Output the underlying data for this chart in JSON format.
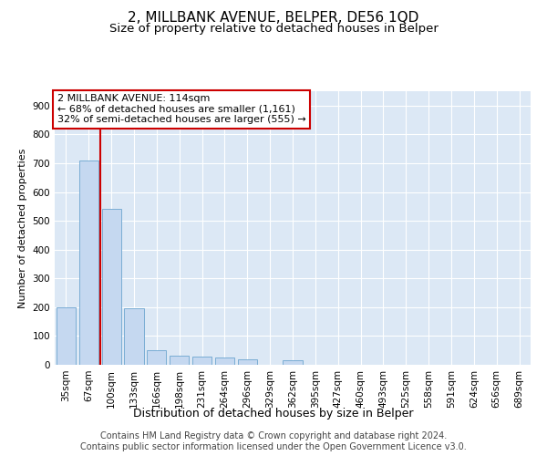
{
  "title": "2, MILLBANK AVENUE, BELPER, DE56 1QD",
  "subtitle": "Size of property relative to detached houses in Belper",
  "xlabel": "Distribution of detached houses by size in Belper",
  "ylabel": "Number of detached properties",
  "categories": [
    "35sqm",
    "67sqm",
    "100sqm",
    "133sqm",
    "166sqm",
    "198sqm",
    "231sqm",
    "264sqm",
    "296sqm",
    "329sqm",
    "362sqm",
    "395sqm",
    "427sqm",
    "460sqm",
    "493sqm",
    "525sqm",
    "558sqm",
    "591sqm",
    "624sqm",
    "656sqm",
    "689sqm"
  ],
  "values": [
    200,
    710,
    540,
    195,
    50,
    33,
    28,
    25,
    18,
    0,
    15,
    0,
    0,
    0,
    0,
    0,
    0,
    0,
    0,
    0,
    0
  ],
  "bar_color": "#c5d8f0",
  "bar_edge_color": "#7aadd4",
  "vline_x": 1.5,
  "vline_color": "#cc0000",
  "annotation_text": "2 MILLBANK AVENUE: 114sqm\n← 68% of detached houses are smaller (1,161)\n32% of semi-detached houses are larger (555) →",
  "annotation_box_color": "#ffffff",
  "annotation_box_edge_color": "#cc0000",
  "ylim": [
    0,
    950
  ],
  "yticks": [
    0,
    100,
    200,
    300,
    400,
    500,
    600,
    700,
    800,
    900
  ],
  "background_color": "#dce8f5",
  "footer_text": "Contains HM Land Registry data © Crown copyright and database right 2024.\nContains public sector information licensed under the Open Government Licence v3.0.",
  "title_fontsize": 11,
  "subtitle_fontsize": 9.5,
  "ylabel_fontsize": 8,
  "xlabel_fontsize": 9,
  "tick_fontsize": 7.5,
  "footer_fontsize": 7,
  "annotation_fontsize": 8
}
